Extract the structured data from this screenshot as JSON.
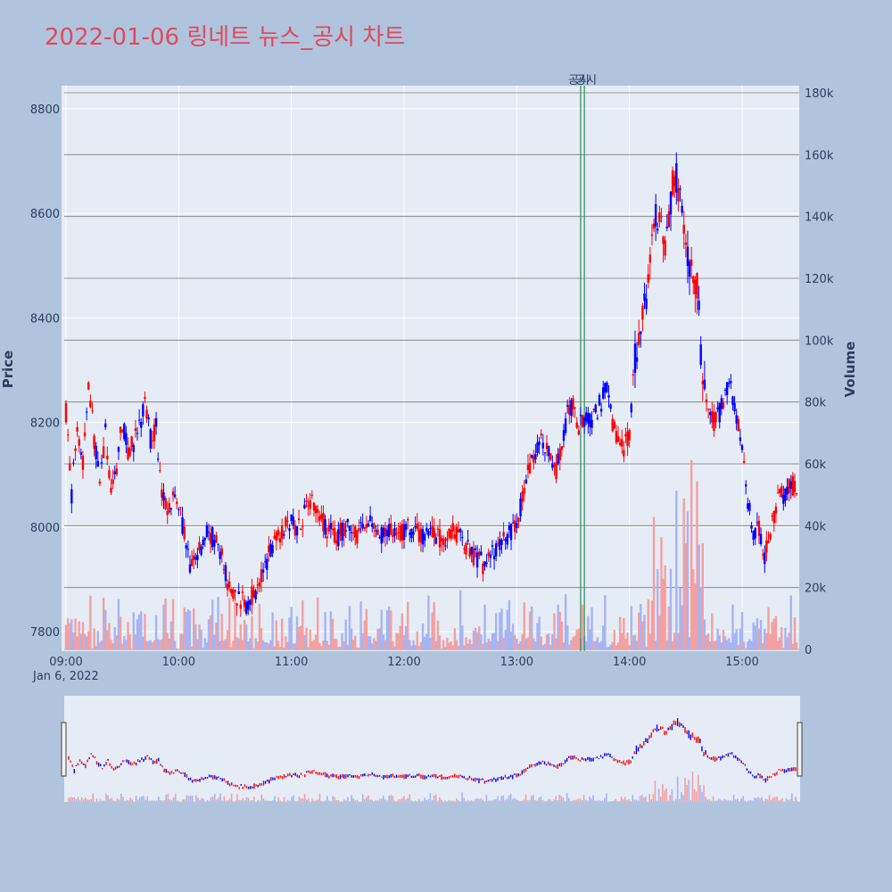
{
  "chart_data": {
    "type": "candlestick",
    "title": "2022-01-06 링네트 뉴스_공시 차트",
    "ylabel": "Price",
    "y2label": "Volume",
    "x_range": [
      "09:00",
      "15:30"
    ],
    "date_label": "Jan 6, 2022",
    "x_ticks": [
      "09:00",
      "10:00",
      "11:00",
      "12:00",
      "13:00",
      "14:00",
      "15:00"
    ],
    "ylim": [
      7770,
      8830
    ],
    "y_ticks": [
      7800,
      8000,
      8200,
      8400,
      8600,
      8800
    ],
    "volume_lim": [
      0,
      180000
    ],
    "volume_ticks": [
      {
        "value": 0,
        "label": "0"
      },
      {
        "value": 20000,
        "label": "20k"
      },
      {
        "value": 40000,
        "label": "40k"
      },
      {
        "value": 60000,
        "label": "60k"
      },
      {
        "value": 80000,
        "label": "80k"
      },
      {
        "value": 100000,
        "label": "100k"
      },
      {
        "value": 120000,
        "label": "120k"
      },
      {
        "value": 140000,
        "label": "140k"
      },
      {
        "value": 160000,
        "label": "160k"
      },
      {
        "value": 180000,
        "label": "180k"
      }
    ],
    "colors": {
      "up": "#ff0000",
      "down": "#0000ff",
      "up_volume": "#f4a0a0",
      "down_volume": "#a6b4f4",
      "event_line": "#2e8b57",
      "plot_bg": "#e5ecf6",
      "paper_bg": "#b0c4de"
    },
    "annotations": [
      {
        "time": "13:34",
        "label": "공시"
      },
      {
        "time": "13:36",
        "label": "공시"
      }
    ],
    "price_path": [
      [
        "09:00",
        8220
      ],
      [
        "09:03",
        8060
      ],
      [
        "09:06",
        8200
      ],
      [
        "09:09",
        8120
      ],
      [
        "09:12",
        8280
      ],
      [
        "09:15",
        8170
      ],
      [
        "09:18",
        8080
      ],
      [
        "09:21",
        8180
      ],
      [
        "09:24",
        8060
      ],
      [
        "09:27",
        8120
      ],
      [
        "09:30",
        8200
      ],
      [
        "09:33",
        8140
      ],
      [
        "09:36",
        8160
      ],
      [
        "09:39",
        8190
      ],
      [
        "09:42",
        8240
      ],
      [
        "09:45",
        8170
      ],
      [
        "09:48",
        8190
      ],
      [
        "09:51",
        8060
      ],
      [
        "09:54",
        8040
      ],
      [
        "09:57",
        8060
      ],
      [
        "10:00",
        8040
      ],
      [
        "10:03",
        7990
      ],
      [
        "10:06",
        7920
      ],
      [
        "10:09",
        7940
      ],
      [
        "10:12",
        7960
      ],
      [
        "10:15",
        7990
      ],
      [
        "10:18",
        7980
      ],
      [
        "10:21",
        7960
      ],
      [
        "10:24",
        7930
      ],
      [
        "10:27",
        7880
      ],
      [
        "10:30",
        7870
      ],
      [
        "10:33",
        7860
      ],
      [
        "10:36",
        7850
      ],
      [
        "10:39",
        7870
      ],
      [
        "10:42",
        7880
      ],
      [
        "10:45",
        7910
      ],
      [
        "10:48",
        7950
      ],
      [
        "10:51",
        7980
      ],
      [
        "10:54",
        7990
      ],
      [
        "10:57",
        8000
      ],
      [
        "11:00",
        8010
      ],
      [
        "11:03",
        8000
      ],
      [
        "11:06",
        8020
      ],
      [
        "11:09",
        8060
      ],
      [
        "11:12",
        8040
      ],
      [
        "11:15",
        8030
      ],
      [
        "11:18",
        8000
      ],
      [
        "11:21",
        7990
      ],
      [
        "11:24",
        7980
      ],
      [
        "11:27",
        7990
      ],
      [
        "11:30",
        8000
      ],
      [
        "11:33",
        7980
      ],
      [
        "11:36",
        7990
      ],
      [
        "11:39",
        8000
      ],
      [
        "11:42",
        8010
      ],
      [
        "11:45",
        7990
      ],
      [
        "11:48",
        7980
      ],
      [
        "11:51",
        7990
      ],
      [
        "11:54",
        8000
      ],
      [
        "11:57",
        7990
      ],
      [
        "12:00",
        7990
      ],
      [
        "12:03",
        8000
      ],
      [
        "12:06",
        7990
      ],
      [
        "12:09",
        7980
      ],
      [
        "12:12",
        8000
      ],
      [
        "12:15",
        7990
      ],
      [
        "12:18",
        7980
      ],
      [
        "12:21",
        7970
      ],
      [
        "12:24",
        7990
      ],
      [
        "12:27",
        7990
      ],
      [
        "12:30",
        7980
      ],
      [
        "12:33",
        7960
      ],
      [
        "12:36",
        7950
      ],
      [
        "12:39",
        7940
      ],
      [
        "12:42",
        7930
      ],
      [
        "12:45",
        7940
      ],
      [
        "12:48",
        7950
      ],
      [
        "12:51",
        7970
      ],
      [
        "12:54",
        7980
      ],
      [
        "12:57",
        7990
      ],
      [
        "13:00",
        8000
      ],
      [
        "13:03",
        8060
      ],
      [
        "13:06",
        8100
      ],
      [
        "13:09",
        8130
      ],
      [
        "13:12",
        8170
      ],
      [
        "13:15",
        8150
      ],
      [
        "13:18",
        8130
      ],
      [
        "13:21",
        8110
      ],
      [
        "13:24",
        8150
      ],
      [
        "13:27",
        8220
      ],
      [
        "13:30",
        8230
      ],
      [
        "13:33",
        8190
      ],
      [
        "13:36",
        8210
      ],
      [
        "13:39",
        8200
      ],
      [
        "13:42",
        8220
      ],
      [
        "13:45",
        8240
      ],
      [
        "13:48",
        8270
      ],
      [
        "13:51",
        8200
      ],
      [
        "13:54",
        8160
      ],
      [
        "13:57",
        8150
      ],
      [
        "14:00",
        8180
      ],
      [
        "14:03",
        8320
      ],
      [
        "14:06",
        8390
      ],
      [
        "14:09",
        8450
      ],
      [
        "14:12",
        8550
      ],
      [
        "14:15",
        8600
      ],
      [
        "14:18",
        8540
      ],
      [
        "14:21",
        8580
      ],
      [
        "14:24",
        8680
      ],
      [
        "14:27",
        8620
      ],
      [
        "14:30",
        8540
      ],
      [
        "14:33",
        8490
      ],
      [
        "14:36",
        8460
      ],
      [
        "14:39",
        8280
      ],
      [
        "14:42",
        8210
      ],
      [
        "14:45",
        8200
      ],
      [
        "14:48",
        8220
      ],
      [
        "14:51",
        8260
      ],
      [
        "14:54",
        8280
      ],
      [
        "14:57",
        8200
      ],
      [
        "15:00",
        8160
      ],
      [
        "15:03",
        8050
      ],
      [
        "15:06",
        7990
      ],
      [
        "15:09",
        8000
      ],
      [
        "15:12",
        7940
      ],
      [
        "15:15",
        7990
      ],
      [
        "15:18",
        8040
      ],
      [
        "15:21",
        8060
      ],
      [
        "15:24",
        8070
      ],
      [
        "15:27",
        8080
      ]
    ]
  }
}
